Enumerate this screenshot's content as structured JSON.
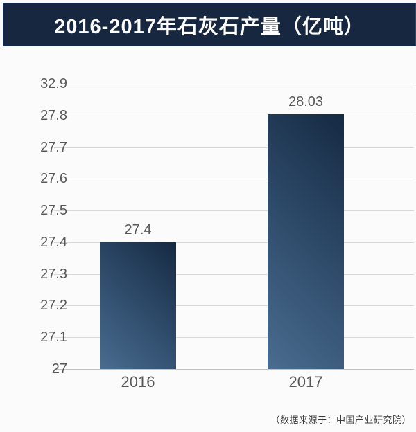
{
  "title": {
    "text": "2016-2017年石灰石产量（亿吨）"
  },
  "source_note": "（数据来源于：中国产业研究院）",
  "colors": {
    "banner_bg": "#16273f",
    "banner_text": "#ffffff",
    "bar_gradient_light": "#4a6c8f",
    "bar_gradient_dark": "#152a42",
    "grid_line": "#d8d8d8",
    "axis_line": "#c2c2c2",
    "label_text": "#595959",
    "page_bg": "#fcfbfb"
  },
  "chart_data": {
    "type": "bar",
    "title": "2016-2017年石灰石产量（亿吨）",
    "categories": [
      "2016",
      "2017"
    ],
    "values": [
      27.4,
      28.03
    ],
    "value_labels": [
      "27.4",
      "28.03"
    ],
    "y_ticks": [
      32.9,
      27.8,
      27.7,
      27.6,
      27.5,
      27.4,
      27.3,
      27.2,
      27.1,
      27
    ],
    "y_tick_labels": [
      "32.9",
      "27.8",
      "27.7",
      "27.6",
      "27.5",
      "27.4",
      "27.3",
      "27.2",
      "27.1",
      "27"
    ],
    "xlabel": "",
    "ylabel": "",
    "grid": true,
    "legend": "none",
    "source": "（数据来源于：中国产业研究院）"
  }
}
